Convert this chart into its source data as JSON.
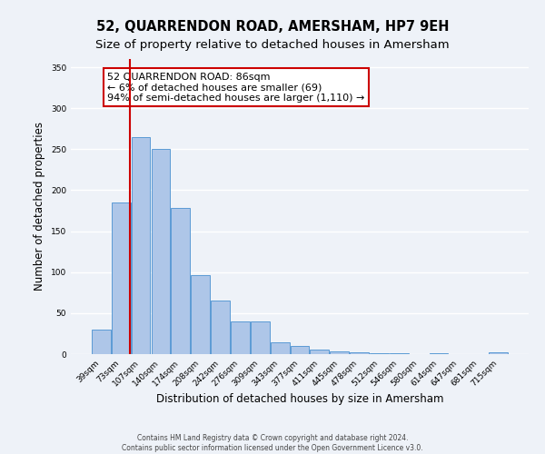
{
  "title": "52, QUARRENDON ROAD, AMERSHAM, HP7 9EH",
  "subtitle": "Size of property relative to detached houses in Amersham",
  "xlabel": "Distribution of detached houses by size in Amersham",
  "ylabel": "Number of detached properties",
  "bar_labels": [
    "39sqm",
    "73sqm",
    "107sqm",
    "140sqm",
    "174sqm",
    "208sqm",
    "242sqm",
    "276sqm",
    "309sqm",
    "343sqm",
    "377sqm",
    "411sqm",
    "445sqm",
    "478sqm",
    "512sqm",
    "546sqm",
    "580sqm",
    "614sqm",
    "647sqm",
    "681sqm",
    "715sqm"
  ],
  "bar_values": [
    30,
    185,
    265,
    250,
    178,
    96,
    65,
    40,
    40,
    14,
    10,
    5,
    3,
    2,
    1,
    1,
    0,
    1,
    0,
    0,
    2
  ],
  "bar_color": "#aec6e8",
  "bar_edgecolor": "#5b9bd5",
  "vline_color": "#cc0000",
  "annotation_text": "52 QUARRENDON ROAD: 86sqm\n← 6% of detached houses are smaller (69)\n94% of semi-detached houses are larger (1,110) →",
  "annotation_box_edgecolor": "#cc0000",
  "annotation_box_facecolor": "#ffffff",
  "ylim": [
    0,
    360
  ],
  "yticks": [
    0,
    50,
    100,
    150,
    200,
    250,
    300,
    350
  ],
  "footer_line1": "Contains HM Land Registry data © Crown copyright and database right 2024.",
  "footer_line2": "Contains public sector information licensed under the Open Government Licence v3.0.",
  "background_color": "#eef2f8",
  "grid_color": "#ffffff",
  "title_fontsize": 10.5,
  "subtitle_fontsize": 9.5,
  "xlabel_fontsize": 8.5,
  "ylabel_fontsize": 8.5,
  "tick_fontsize": 6.5,
  "footer_fontsize": 5.5
}
